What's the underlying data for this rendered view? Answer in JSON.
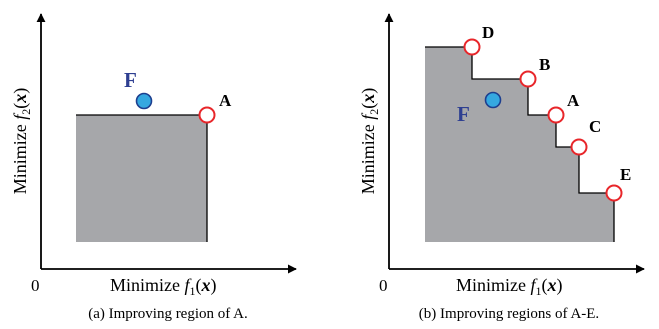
{
  "panels": [
    {
      "origin_label": "0",
      "x_axis": {
        "prefix": "Minimize ",
        "func": "f",
        "sub": "1",
        "arg_open": "(",
        "var": "x",
        "arg_close": ")"
      },
      "y_axis": {
        "prefix": "Minimize ",
        "func": "f",
        "sub": "2",
        "arg_open": "(",
        "var": "x",
        "arg_close": ")"
      },
      "caption": "(a) Improving region of A.",
      "solutions": [
        {
          "label": "A"
        }
      ],
      "reference": {
        "label": "F"
      }
    },
    {
      "origin_label": "0",
      "x_axis": {
        "prefix": "Minimize ",
        "func": "f",
        "sub": "1",
        "arg_open": "(",
        "var": "x",
        "arg_close": ")"
      },
      "y_axis": {
        "prefix": "Minimize ",
        "func": "f",
        "sub": "2",
        "arg_open": "(",
        "var": "x",
        "arg_close": ")"
      },
      "caption": "(b) Improving regions of A-E.",
      "solutions": [
        {
          "label": "D"
        },
        {
          "label": "B"
        },
        {
          "label": "A"
        },
        {
          "label": "C"
        },
        {
          "label": "E"
        }
      ],
      "reference": {
        "label": "F"
      }
    }
  ],
  "colors": {
    "region_fill": "#a6a7aa",
    "solution_stroke": "#e8262a",
    "solution_fill": "#ffffff",
    "reference_fill": "#35a8e0",
    "reference_stroke": "#1d3f8f",
    "reference_label": "#2e3f91"
  }
}
